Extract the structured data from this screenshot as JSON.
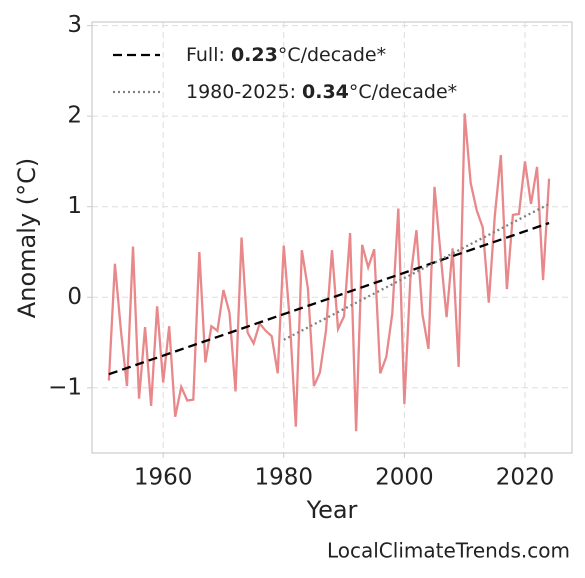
{
  "chart_data": {
    "type": "line",
    "x_label": "Year",
    "y_label": "Anomaly (°C)",
    "source": "LocalClimateTrends.com",
    "xlim": [
      1948.2,
      2027.8
    ],
    "xticks": [
      1960,
      1980,
      2000,
      2020
    ],
    "ylim": [
      -1.72,
      3.04
    ],
    "yticks": [
      {
        "value": -1,
        "label": "−1"
      },
      0,
      1,
      2,
      3
    ],
    "grid": true,
    "legend": "upper left",
    "series": [
      {
        "name": "Full: 0.23°C/decade*",
        "color": "#000000",
        "style": "dashed",
        "x": [
          1951,
          2024
        ],
        "values": [
          -0.85,
          0.82
        ]
      },
      {
        "name": "1980-2025: 0.34°C/decade*",
        "color": "#808080",
        "style": "dotted",
        "x": [
          1980,
          2024
        ],
        "values": [
          -0.47,
          1.03
        ]
      },
      {
        "color": "#e8888a",
        "style": "solid",
        "x": [
          1951,
          1952,
          1953,
          1954,
          1955,
          1956,
          1957,
          1958,
          1959,
          1960,
          1961,
          1962,
          1963,
          1964,
          1965,
          1966,
          1967,
          1968,
          1969,
          1970,
          1971,
          1972,
          1973,
          1974,
          1975,
          1976,
          1977,
          1978,
          1979,
          1980,
          1981,
          1982,
          1983,
          1984,
          1985,
          1986,
          1987,
          1988,
          1989,
          1990,
          1991,
          1992,
          1993,
          1994,
          1995,
          1996,
          1997,
          1998,
          1999,
          2000,
          2001,
          2002,
          2003,
          2004,
          2005,
          2006,
          2007,
          2008,
          2009,
          2010,
          2011,
          2012,
          2013,
          2014,
          2015,
          2016,
          2017,
          2018,
          2019,
          2020,
          2021,
          2022,
          2023,
          2024
        ],
        "values": [
          -0.92,
          0.37,
          -0.37,
          -0.98,
          0.56,
          -1.12,
          -0.33,
          -1.2,
          -0.1,
          -0.94,
          -0.32,
          -1.32,
          -0.99,
          -1.14,
          -1.13,
          0.5,
          -0.72,
          -0.32,
          -0.37,
          0.08,
          -0.17,
          -1.04,
          0.66,
          -0.39,
          -0.51,
          -0.29,
          -0.37,
          -0.43,
          -0.84,
          0.57,
          -0.25,
          -1.43,
          0.52,
          0.1,
          -0.98,
          -0.83,
          -0.37,
          0.52,
          -0.35,
          -0.21,
          0.71,
          -1.48,
          0.58,
          0.33,
          0.53,
          -0.84,
          -0.66,
          -0.18,
          0.98,
          -1.18,
          0.21,
          0.74,
          -0.19,
          -0.57,
          1.22,
          0.48,
          -0.22,
          0.54,
          -0.77,
          2.03,
          1.26,
          0.96,
          0.77,
          -0.06,
          0.9,
          1.57,
          0.09,
          0.91,
          0.92,
          1.5,
          1.03,
          1.44,
          0.19,
          1.31
        ]
      }
    ]
  }
}
